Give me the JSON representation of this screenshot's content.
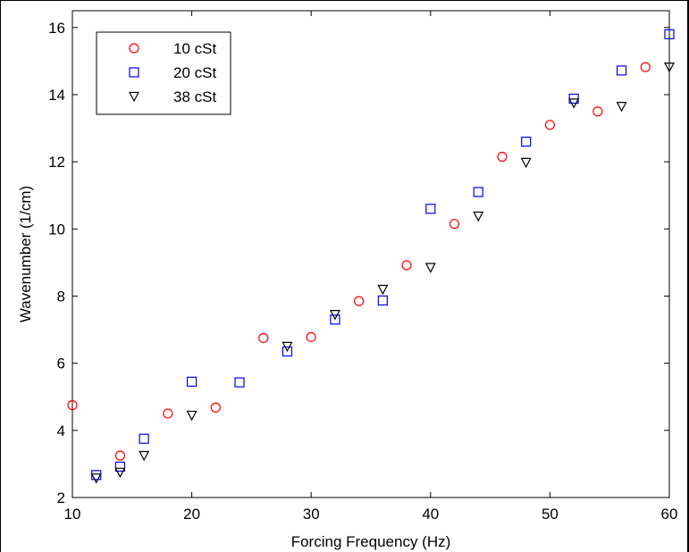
{
  "chart_data": {
    "type": "scatter",
    "title": "",
    "xlabel": "Forcing Frequency (Hz)",
    "ylabel": "Wavenumber (1/cm)",
    "xlim": [
      10,
      60
    ],
    "ylim": [
      2,
      16.5
    ],
    "xticks": [
      "10",
      "20",
      "30",
      "40",
      "50",
      "60"
    ],
    "yticks": [
      "2",
      "4",
      "6",
      "8",
      "10",
      "12",
      "14",
      "16"
    ],
    "grid": false,
    "legend_position": "top-left",
    "series": [
      {
        "name": "10 cSt",
        "marker": "circle",
        "color": "#ff0000",
        "x": [
          10,
          14,
          18,
          22,
          26,
          30,
          34,
          38,
          42,
          46,
          50,
          54,
          58
        ],
        "y": [
          4.75,
          3.25,
          4.5,
          4.68,
          6.75,
          6.78,
          7.85,
          8.92,
          10.15,
          12.15,
          13.1,
          13.5,
          14.82
        ]
      },
      {
        "name": "20 cSt",
        "marker": "square",
        "color": "#0000ff",
        "x": [
          12,
          14,
          16,
          20,
          24,
          28,
          32,
          36,
          40,
          44,
          48,
          52,
          56,
          60
        ],
        "y": [
          2.67,
          2.92,
          3.75,
          5.45,
          5.43,
          6.35,
          7.3,
          7.87,
          10.6,
          11.1,
          12.6,
          13.88,
          14.72,
          15.8
        ]
      },
      {
        "name": "38 cSt",
        "marker": "triangle-down",
        "color": "#000000",
        "x": [
          12,
          14,
          16,
          20,
          28,
          32,
          36,
          40,
          44,
          48,
          52,
          56,
          60
        ],
        "y": [
          2.58,
          2.75,
          3.25,
          4.45,
          6.5,
          7.45,
          8.2,
          8.85,
          10.38,
          11.98,
          13.75,
          13.65,
          14.82
        ]
      }
    ]
  }
}
